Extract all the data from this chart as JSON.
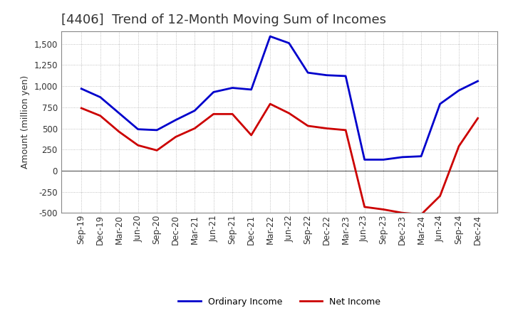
{
  "title": "[4406]  Trend of 12-Month Moving Sum of Incomes",
  "ylabel": "Amount (million yen)",
  "x_labels": [
    "Sep-19",
    "Dec-19",
    "Mar-20",
    "Jun-20",
    "Sep-20",
    "Dec-20",
    "Mar-21",
    "Jun-21",
    "Sep-21",
    "Dec-21",
    "Mar-22",
    "Jun-22",
    "Sep-22",
    "Dec-22",
    "Mar-23",
    "Jun-23",
    "Sep-23",
    "Dec-23",
    "Mar-24",
    "Jun-24",
    "Sep-24",
    "Dec-24"
  ],
  "ordinary_income": [
    970,
    870,
    680,
    490,
    480,
    600,
    710,
    930,
    980,
    960,
    1590,
    1510,
    1160,
    1130,
    1120,
    130,
    130,
    160,
    170,
    790,
    950,
    1060
  ],
  "net_income": [
    740,
    650,
    460,
    300,
    240,
    400,
    500,
    670,
    670,
    420,
    790,
    680,
    530,
    500,
    480,
    -430,
    -460,
    -500,
    -520,
    -300,
    290,
    620
  ],
  "ordinary_income_color": "#0000cc",
  "net_income_color": "#cc0000",
  "ylim": [
    -500,
    1650
  ],
  "yticks": [
    -500,
    -250,
    0,
    250,
    500,
    750,
    1000,
    1250,
    1500
  ],
  "background_color": "#ffffff",
  "grid_color": "#b0b0b0",
  "title_fontsize": 13,
  "axis_fontsize": 9,
  "tick_fontsize": 8.5,
  "linewidth": 2.0
}
